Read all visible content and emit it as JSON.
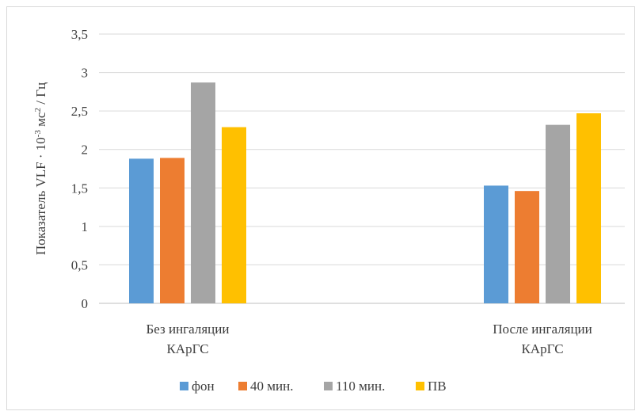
{
  "chart_data": {
    "type": "bar",
    "title": "",
    "ylabel": "Показатель VLF · 10⁻³ мс² / Гц",
    "ylabel_parts": {
      "prefix": "Показатель VLF · 10",
      "exp1": "-3",
      "middle": "  мс",
      "exp2": "2",
      "suffix": " / Гц"
    },
    "categories": [
      [
        "Без ингаляции",
        "КАрГС"
      ],
      [
        "После ингаляции",
        "КАрГС"
      ]
    ],
    "ylim": [
      0,
      3.5
    ],
    "yticks": [
      "0",
      "0,5",
      "1",
      "1,5",
      "2",
      "2,5",
      "3",
      "3,5"
    ],
    "ytick_values": [
      0,
      0.5,
      1,
      1.5,
      2,
      2.5,
      3,
      3.5
    ],
    "grid": true,
    "legend_position": "bottom",
    "series": [
      {
        "name": "фон",
        "color": "#5b9bd5",
        "values": [
          1.88,
          1.53
        ]
      },
      {
        "name": "40 мин.",
        "color": "#ed7d31",
        "values": [
          1.89,
          1.46
        ]
      },
      {
        "name": "110 мин.",
        "color": "#a5a5a5",
        "values": [
          2.87,
          2.32
        ]
      },
      {
        "name": "ПВ",
        "color": "#ffc000",
        "values": [
          2.29,
          2.47
        ]
      }
    ]
  }
}
